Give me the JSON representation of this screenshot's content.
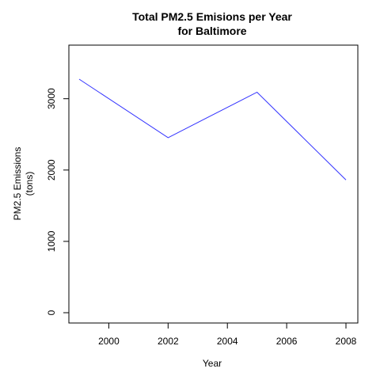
{
  "chart_data": {
    "type": "line",
    "title_lines": [
      "Total PM2.5 Emisions per Year",
      "for Baltimore"
    ],
    "xlabel": "Year",
    "ylabel_lines": [
      "PM2.5 Emissions",
      "(tons)"
    ],
    "x": [
      1999,
      2002,
      2005,
      2008
    ],
    "series": [
      {
        "values": [
          3274,
          2454,
          3091,
          1862
        ],
        "color": "#3333ff"
      }
    ],
    "xlim": [
      1999,
      2008
    ],
    "ylim": [
      0,
      3274
    ],
    "xticks": [
      2000,
      2002,
      2004,
      2006,
      2008
    ],
    "yticks": [
      0,
      1000,
      2000,
      3000
    ],
    "grid": false,
    "legend": "none"
  }
}
